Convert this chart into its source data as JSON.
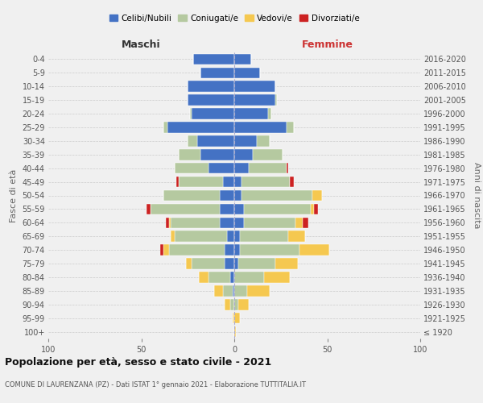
{
  "age_groups": [
    "100+",
    "95-99",
    "90-94",
    "85-89",
    "80-84",
    "75-79",
    "70-74",
    "65-69",
    "60-64",
    "55-59",
    "50-54",
    "45-49",
    "40-44",
    "35-39",
    "30-34",
    "25-29",
    "20-24",
    "15-19",
    "10-14",
    "5-9",
    "0-4"
  ],
  "birth_years": [
    "≤ 1920",
    "1921-1925",
    "1926-1930",
    "1931-1935",
    "1936-1940",
    "1941-1945",
    "1946-1950",
    "1951-1955",
    "1956-1960",
    "1961-1965",
    "1966-1970",
    "1971-1975",
    "1976-1980",
    "1981-1985",
    "1986-1990",
    "1991-1995",
    "1996-2000",
    "2001-2005",
    "2006-2010",
    "2011-2015",
    "2016-2020"
  ],
  "colors": {
    "celibi": "#4472c4",
    "coniugati": "#b5c9a0",
    "vedovi": "#f5c850",
    "divorziati": "#cc2222"
  },
  "maschi": {
    "celibi": [
      0,
      0,
      0,
      1,
      2,
      5,
      5,
      4,
      8,
      8,
      8,
      6,
      14,
      18,
      20,
      36,
      23,
      25,
      25,
      18,
      22
    ],
    "coniugati": [
      0,
      0,
      2,
      5,
      12,
      18,
      30,
      28,
      26,
      37,
      30,
      24,
      18,
      12,
      5,
      2,
      1,
      0,
      0,
      0,
      0
    ],
    "vedovi": [
      0,
      1,
      3,
      5,
      5,
      3,
      3,
      2,
      1,
      0,
      0,
      0,
      0,
      0,
      0,
      0,
      0,
      0,
      0,
      0,
      0
    ],
    "divorziati": [
      0,
      0,
      0,
      0,
      0,
      0,
      2,
      0,
      2,
      2,
      0,
      1,
      0,
      0,
      0,
      0,
      0,
      0,
      0,
      0,
      0
    ]
  },
  "femmine": {
    "celibi": [
      0,
      0,
      0,
      0,
      0,
      2,
      3,
      3,
      5,
      5,
      4,
      4,
      8,
      10,
      12,
      28,
      18,
      22,
      22,
      14,
      9
    ],
    "coniugati": [
      0,
      0,
      2,
      7,
      16,
      20,
      32,
      26,
      28,
      36,
      38,
      26,
      20,
      16,
      7,
      4,
      2,
      1,
      0,
      0,
      0
    ],
    "vedovi": [
      1,
      3,
      6,
      12,
      14,
      12,
      16,
      9,
      4,
      2,
      5,
      0,
      0,
      0,
      0,
      0,
      0,
      0,
      0,
      0,
      0
    ],
    "divorziati": [
      0,
      0,
      0,
      0,
      0,
      0,
      0,
      0,
      3,
      2,
      0,
      2,
      1,
      0,
      0,
      0,
      0,
      0,
      0,
      0,
      0
    ]
  },
  "xlim": 100,
  "title": "Popolazione per età, sesso e stato civile - 2021",
  "subtitle": "COMUNE DI LAURENZANA (PZ) - Dati ISTAT 1° gennaio 2021 - Elaborazione TUTTITALIA.IT",
  "ylabel_left": "Fasce di età",
  "ylabel_right": "Anni di nascita",
  "xlabel_left": "Maschi",
  "xlabel_right": "Femmine",
  "legend_labels": [
    "Celibi/Nubili",
    "Coniugati/e",
    "Vedovi/e",
    "Divorziati/e"
  ],
  "background_color": "#f0f0f0"
}
